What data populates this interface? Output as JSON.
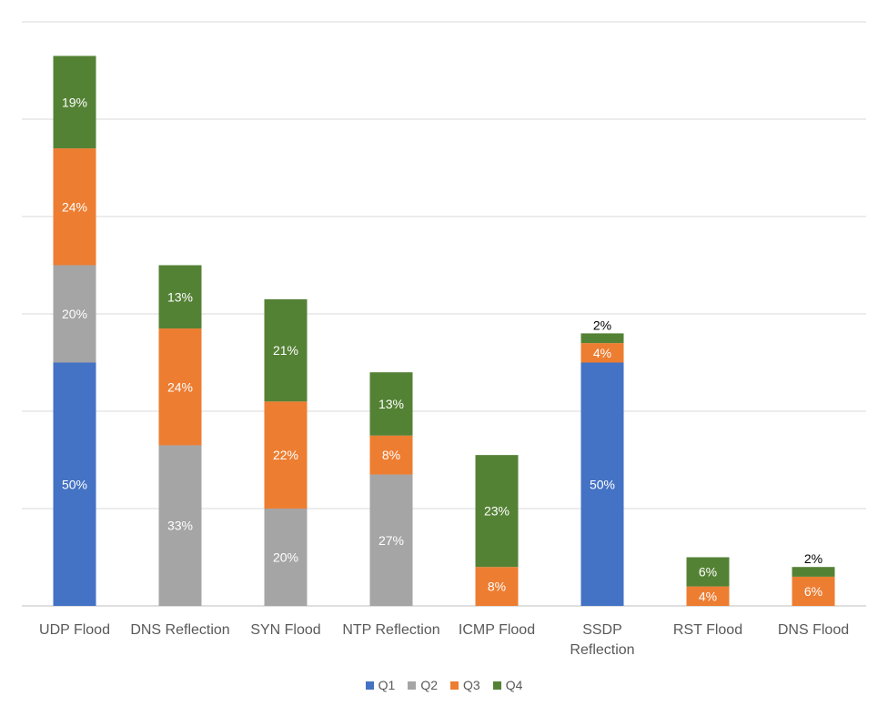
{
  "chart_data": {
    "type": "bar",
    "stacked": true,
    "title": "",
    "xlabel": "",
    "ylabel": "",
    "grid": true,
    "legend_position": "bottom",
    "ylim": [
      0,
      1.2
    ],
    "categories": [
      "UDP Flood",
      "DNS Reflection",
      "SYN Flood",
      "NTP Reflection",
      "ICMP Flood",
      "SSDP Reflection",
      "RST Flood",
      "DNS Flood"
    ],
    "series": [
      {
        "name": "Q1",
        "color": "#4472C4",
        "values": [
          0.5,
          0,
          0,
          0,
          0,
          0.5,
          0,
          0
        ],
        "labels": [
          "50%",
          "",
          "",
          "",
          "",
          "50%",
          "",
          ""
        ]
      },
      {
        "name": "Q2",
        "color": "#A5A5A5",
        "values": [
          0.2,
          0.33,
          0.2,
          0.27,
          0,
          0,
          0,
          0
        ],
        "labels": [
          "20%",
          "33%",
          "20%",
          "27%",
          "",
          "",
          "",
          ""
        ]
      },
      {
        "name": "Q3",
        "color": "#ED7D31",
        "values": [
          0.24,
          0.24,
          0.22,
          0.08,
          0.08,
          0.04,
          0.04,
          0.06
        ],
        "labels": [
          "24%",
          "24%",
          "22%",
          "8%",
          "8%",
          "4%",
          "4%",
          "6%"
        ]
      },
      {
        "name": "Q4",
        "color": "#548235",
        "values": [
          0.19,
          0.13,
          0.21,
          0.13,
          0.23,
          0.02,
          0.06,
          0.02
        ],
        "labels": [
          "19%",
          "13%",
          "21%",
          "13%",
          "23%",
          "2%",
          "6%",
          "2%"
        ]
      }
    ]
  }
}
